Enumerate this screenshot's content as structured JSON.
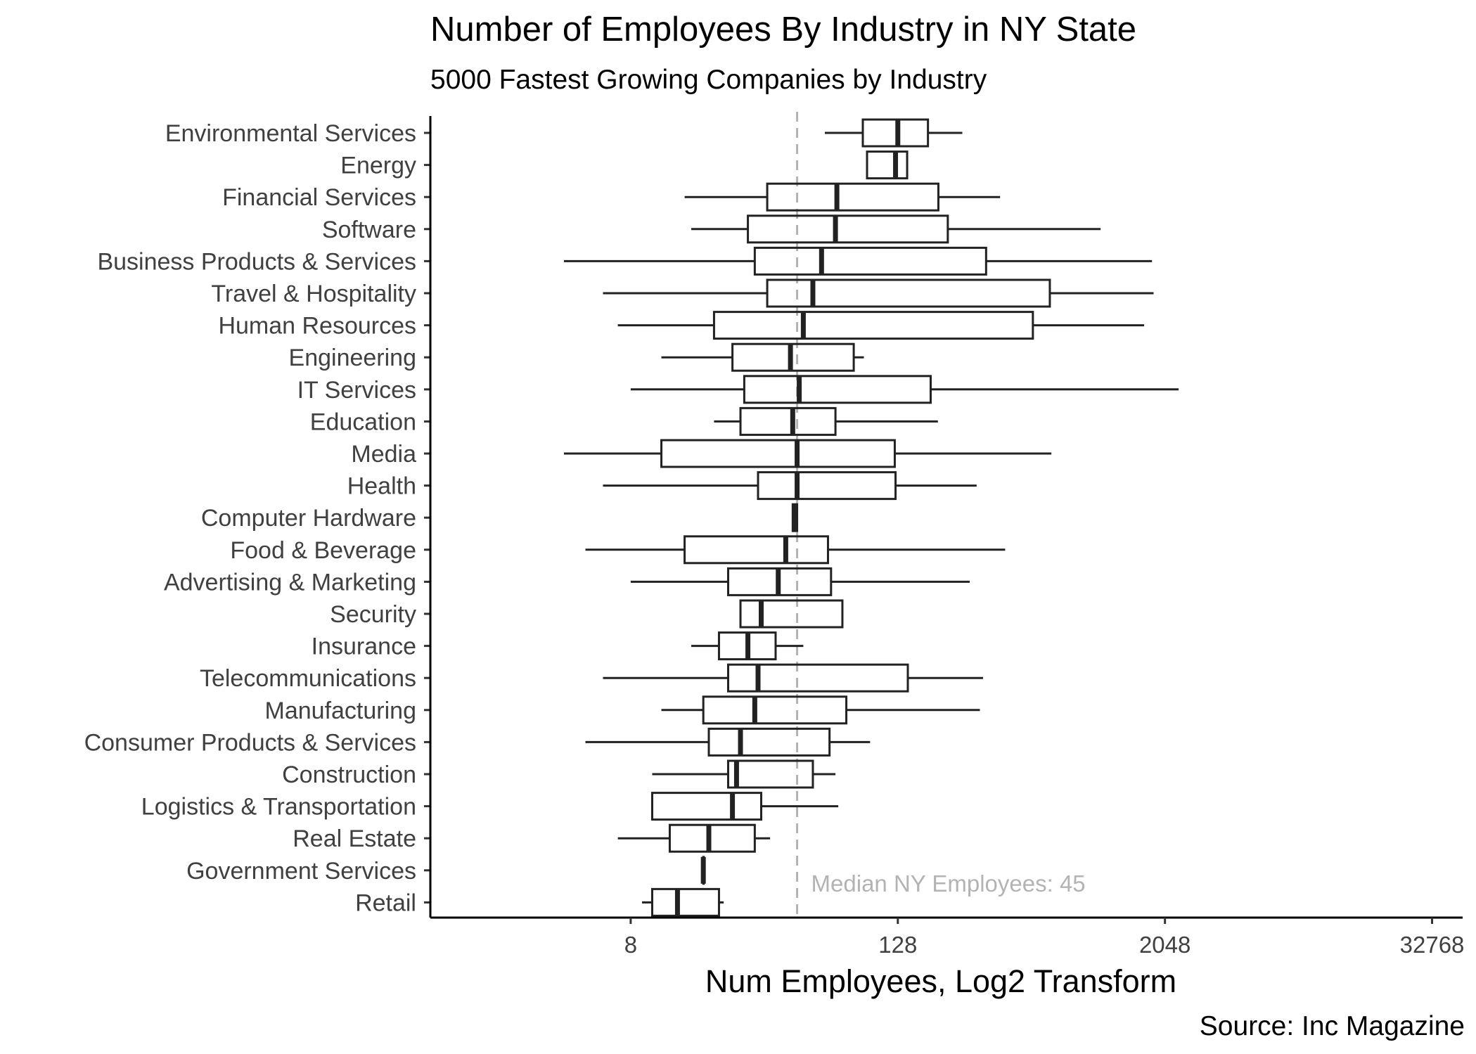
{
  "chart_data": {
    "type": "boxplot",
    "orientation": "horizontal",
    "title": "Number of Employees By Industry in NY State",
    "subtitle": "5000 Fastest Growing Companies by Industry",
    "caption": "Source: Inc Magazine",
    "xlabel": "Num Employees, Log2 Transform",
    "ylabel": "",
    "x_scale": "log2",
    "xlim": [
      1,
      45000
    ],
    "x_ticks": [
      8,
      128,
      2048,
      32768
    ],
    "x_tick_labels": [
      "8",
      "128",
      "2048",
      "32768"
    ],
    "grid": false,
    "reference_line": {
      "value": 45,
      "label": "Median NY Employees:  45",
      "color": "#b3b3b3",
      "style": "dashed"
    },
    "categories": [
      "Environmental Services",
      "Energy",
      "Financial Services",
      "Software",
      "Business Products & Services",
      "Travel & Hospitality",
      "Human Resources",
      "Engineering",
      "IT Services",
      "Education",
      "Media",
      "Health",
      "Computer Hardware",
      "Food & Beverage",
      "Advertising & Marketing",
      "Security",
      "Insurance",
      "Telecommunications",
      "Manufacturing",
      "Consumer Products & Services",
      "Construction",
      "Logistics & Transportation",
      "Real Estate",
      "Government Services",
      "Retail"
    ],
    "boxes": [
      {
        "min": 60,
        "q1": 89,
        "median": 128,
        "q3": 175,
        "max": 250
      },
      {
        "min": 93,
        "q1": 93,
        "median": 125,
        "q3": 141,
        "max": 141
      },
      {
        "min": 14,
        "q1": 33,
        "median": 68,
        "q3": 195,
        "max": 370
      },
      {
        "min": 15,
        "q1": 27,
        "median": 67,
        "q3": 215,
        "max": 1050
      },
      {
        "min": 4,
        "q1": 29,
        "median": 58,
        "q3": 320,
        "max": 1790
      },
      {
        "min": 6,
        "q1": 33,
        "median": 53,
        "q3": 620,
        "max": 1820
      },
      {
        "min": 7,
        "q1": 19,
        "median": 48,
        "q3": 520,
        "max": 1650
      },
      {
        "min": 11,
        "q1": 23,
        "median": 42,
        "q3": 81,
        "max": 90
      },
      {
        "min": 8,
        "q1": 26,
        "median": 46,
        "q3": 180,
        "max": 2360
      },
      {
        "min": 19,
        "q1": 25,
        "median": 43,
        "q3": 67,
        "max": 194
      },
      {
        "min": 4,
        "q1": 11,
        "median": 45,
        "q3": 124,
        "max": 630
      },
      {
        "min": 6,
        "q1": 30,
        "median": 45,
        "q3": 125,
        "max": 290
      },
      {
        "min": 43,
        "q1": 43,
        "median": 44,
        "q3": 45,
        "max": 45
      },
      {
        "min": 5,
        "q1": 14,
        "median": 40,
        "q3": 62,
        "max": 390
      },
      {
        "min": 8,
        "q1": 22,
        "median": 37,
        "q3": 64,
        "max": 270
      },
      {
        "min": 25,
        "q1": 25,
        "median": 31,
        "q3": 72,
        "max": 72
      },
      {
        "min": 15,
        "q1": 20,
        "median": 27,
        "q3": 36,
        "max": 48
      },
      {
        "min": 6,
        "q1": 22,
        "median": 30,
        "q3": 142,
        "max": 310
      },
      {
        "min": 11,
        "q1": 17,
        "median": 29,
        "q3": 75,
        "max": 300
      },
      {
        "min": 5,
        "q1": 18,
        "median": 25,
        "q3": 63,
        "max": 96
      },
      {
        "min": 10,
        "q1": 22,
        "median": 24,
        "q3": 53,
        "max": 67
      },
      {
        "min": 10,
        "q1": 10,
        "median": 23,
        "q3": 31,
        "max": 69
      },
      {
        "min": 7,
        "q1": 12,
        "median": 18,
        "q3": 29,
        "max": 34
      },
      {
        "min": 17,
        "q1": 17,
        "median": 17,
        "q3": 17,
        "max": 17
      },
      {
        "min": 9,
        "q1": 10,
        "median": 13,
        "q3": 20,
        "max": 21
      }
    ],
    "colors": {
      "box_stroke": "#222222",
      "axis": "#000000",
      "reference": "#b3b3b3"
    }
  }
}
